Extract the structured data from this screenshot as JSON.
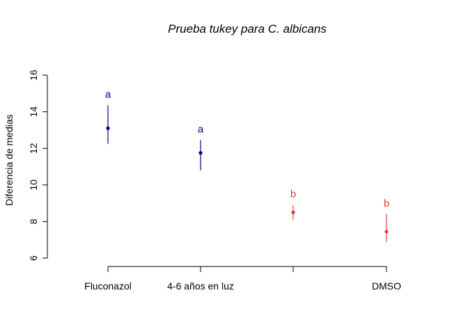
{
  "chart_data": {
    "type": "scatter",
    "title": "Prueba tukey para C. albicans",
    "ylabel": "Diferencia de medias",
    "xlabel": "",
    "ylim": [
      6,
      16
    ],
    "yticks": [
      6,
      8,
      10,
      12,
      14,
      16
    ],
    "grid": false,
    "categories": [
      "Fluconazol",
      "4-6 años en luz",
      "",
      "DMSO"
    ],
    "points": [
      {
        "category": "Fluconazol",
        "mean": 13.1,
        "lower": 12.25,
        "upper": 14.35,
        "group": "a",
        "color": "#00008B"
      },
      {
        "category": "4-6 años en luz",
        "mean": 11.75,
        "lower": 10.8,
        "upper": 12.45,
        "group": "a",
        "color": "#00008B"
      },
      {
        "category": "",
        "mean": 8.5,
        "lower": 8.1,
        "upper": 8.9,
        "group": "b",
        "color": "#E0403A"
      },
      {
        "category": "DMSO",
        "mean": 7.45,
        "lower": 6.9,
        "upper": 8.4,
        "group": "b",
        "color": "#E0403A"
      }
    ]
  }
}
